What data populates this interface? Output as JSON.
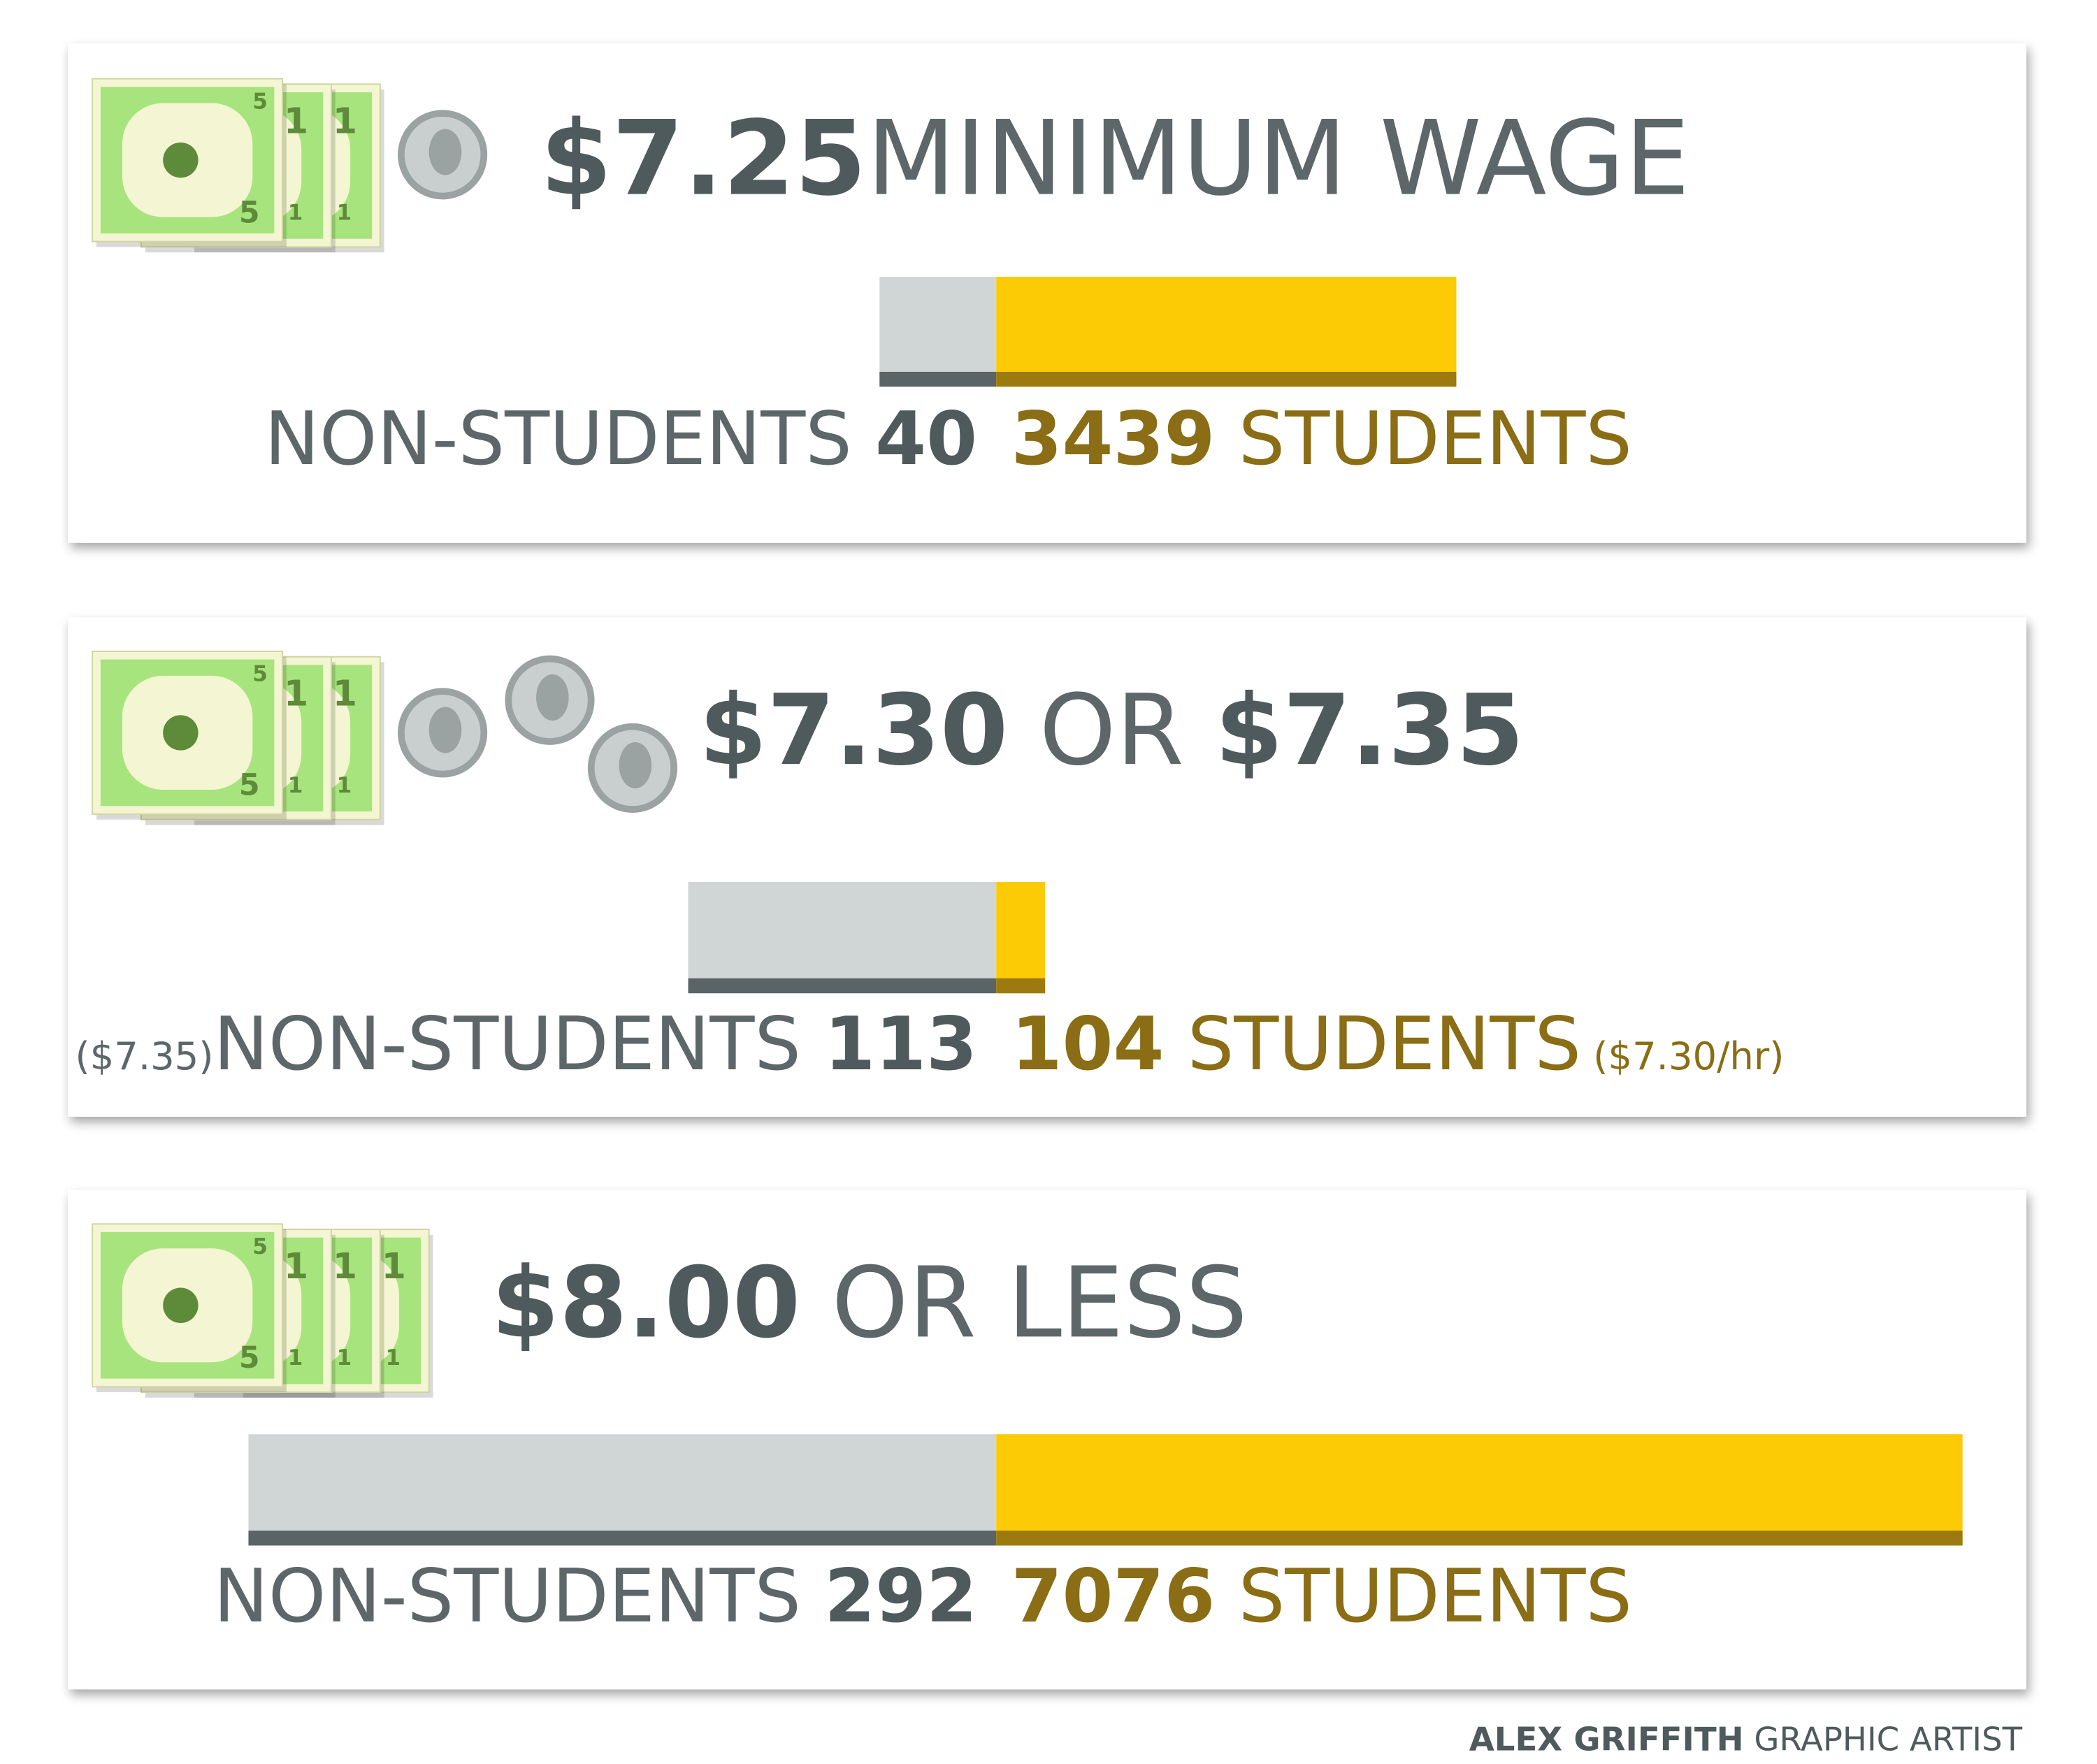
{
  "panels": [
    {
      "amount": "$7.25",
      "label": "MINIMUM WAGE",
      "left_label": "NON-STUDENTS",
      "left_value": 40,
      "right_value": 3439,
      "right_label": "STUDENTS"
    },
    {
      "amount": "$7.30",
      "connector": "OR",
      "amount2": "$7.35",
      "left_note": "($7.35)",
      "left_label": "NON-STUDENTS",
      "left_value": 113,
      "right_value": 104,
      "right_label": "STUDENTS",
      "right_note": "($7.30/hr)"
    },
    {
      "amount": "$8.00",
      "label": "OR LESS",
      "left_label": "NON-STUDENTS",
      "left_value": 292,
      "right_value": 7076,
      "right_label": "STUDENTS"
    }
  ],
  "icons": {
    "bill_front": "5",
    "bill_back": "1"
  },
  "credit": {
    "name": "ALEX GRIFFITH",
    "role": "GRAPHIC ARTIST"
  }
}
